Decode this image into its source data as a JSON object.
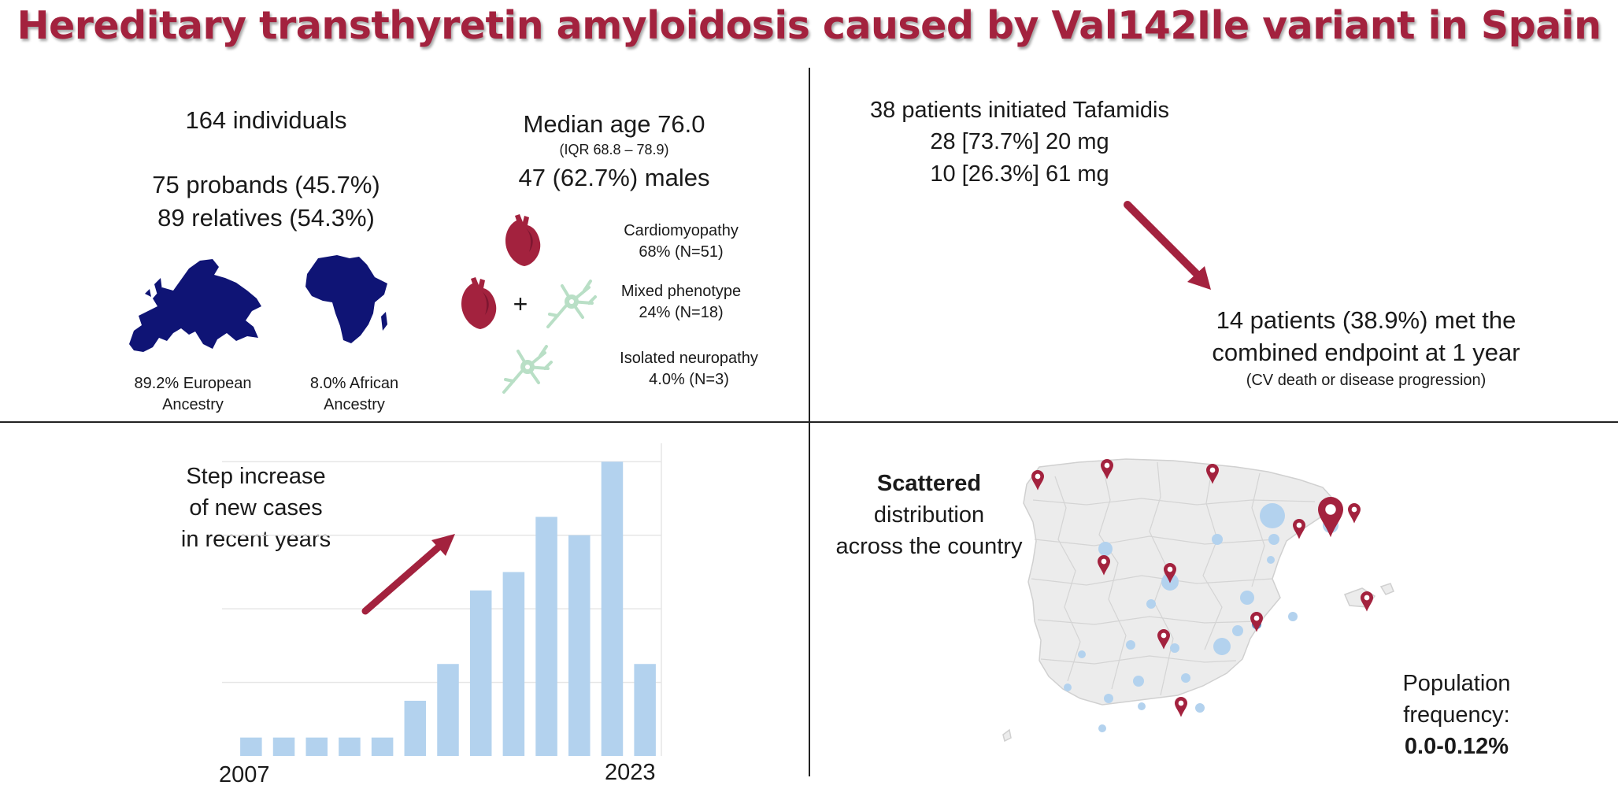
{
  "title": "Hereditary transthyretin amyloidosis caused by Val142Ile variant in Spain",
  "colors": {
    "brand": "#a3223e",
    "navy": "#0f1475",
    "neuron": "#b9dfc6",
    "bar": "#b3d2ee",
    "map": "#ececec"
  },
  "cohort": {
    "individuals": "164 individuals",
    "probands": "75 probands (45.7%)",
    "relatives": "89 relatives (54.3%)",
    "european_line1": "89.2% European",
    "european_line2": "Ancestry",
    "african_line1": "8.0% African",
    "african_line2": "Ancestry"
  },
  "demographics": {
    "median_age": "Median age 76.0",
    "iqr": "(IQR 68.8 – 78.9)",
    "males": "47 (62.7%) males"
  },
  "phenotypes": {
    "plus": "+",
    "items": [
      {
        "name": "Cardiomyopathy",
        "value": "68% (N=51)",
        "icon": "heart-icon"
      },
      {
        "name": "Mixed phenotype",
        "value": "24% (N=18)",
        "icon": "heart-plus-neuron-icon"
      },
      {
        "name": "Isolated neuropathy",
        "value": "4.0% (N=3)",
        "icon": "neuron-icon"
      }
    ]
  },
  "treatment": {
    "line1": "38 patients initiated Tafamidis",
    "line2": "28 [73.7%] 20 mg",
    "line3": "10 [26.3%] 61 mg",
    "outcome_line1": "14 patients (38.9%) met the",
    "outcome_line2": "combined endpoint at 1 year",
    "outcome_note": "(CV death or disease progression)"
  },
  "chart_caption": {
    "line1": "Step increase",
    "line2": "of new cases",
    "line3": "in recent years"
  },
  "chart_data": {
    "type": "bar",
    "x_start_label": "2007",
    "x_end_label": "2023",
    "values": [
      1,
      1,
      1,
      1,
      1,
      3,
      5,
      9,
      10,
      13,
      12,
      16,
      5
    ],
    "ylim": [
      0,
      17
    ],
    "grid": true,
    "color": "#b3d2ee"
  },
  "distribution": {
    "line1": "Scattered",
    "line2": "distribution",
    "line3": "across the country",
    "freq_line1": "Population",
    "freq_line2": "frequency:",
    "freq_value": "0.0-0.12%"
  }
}
